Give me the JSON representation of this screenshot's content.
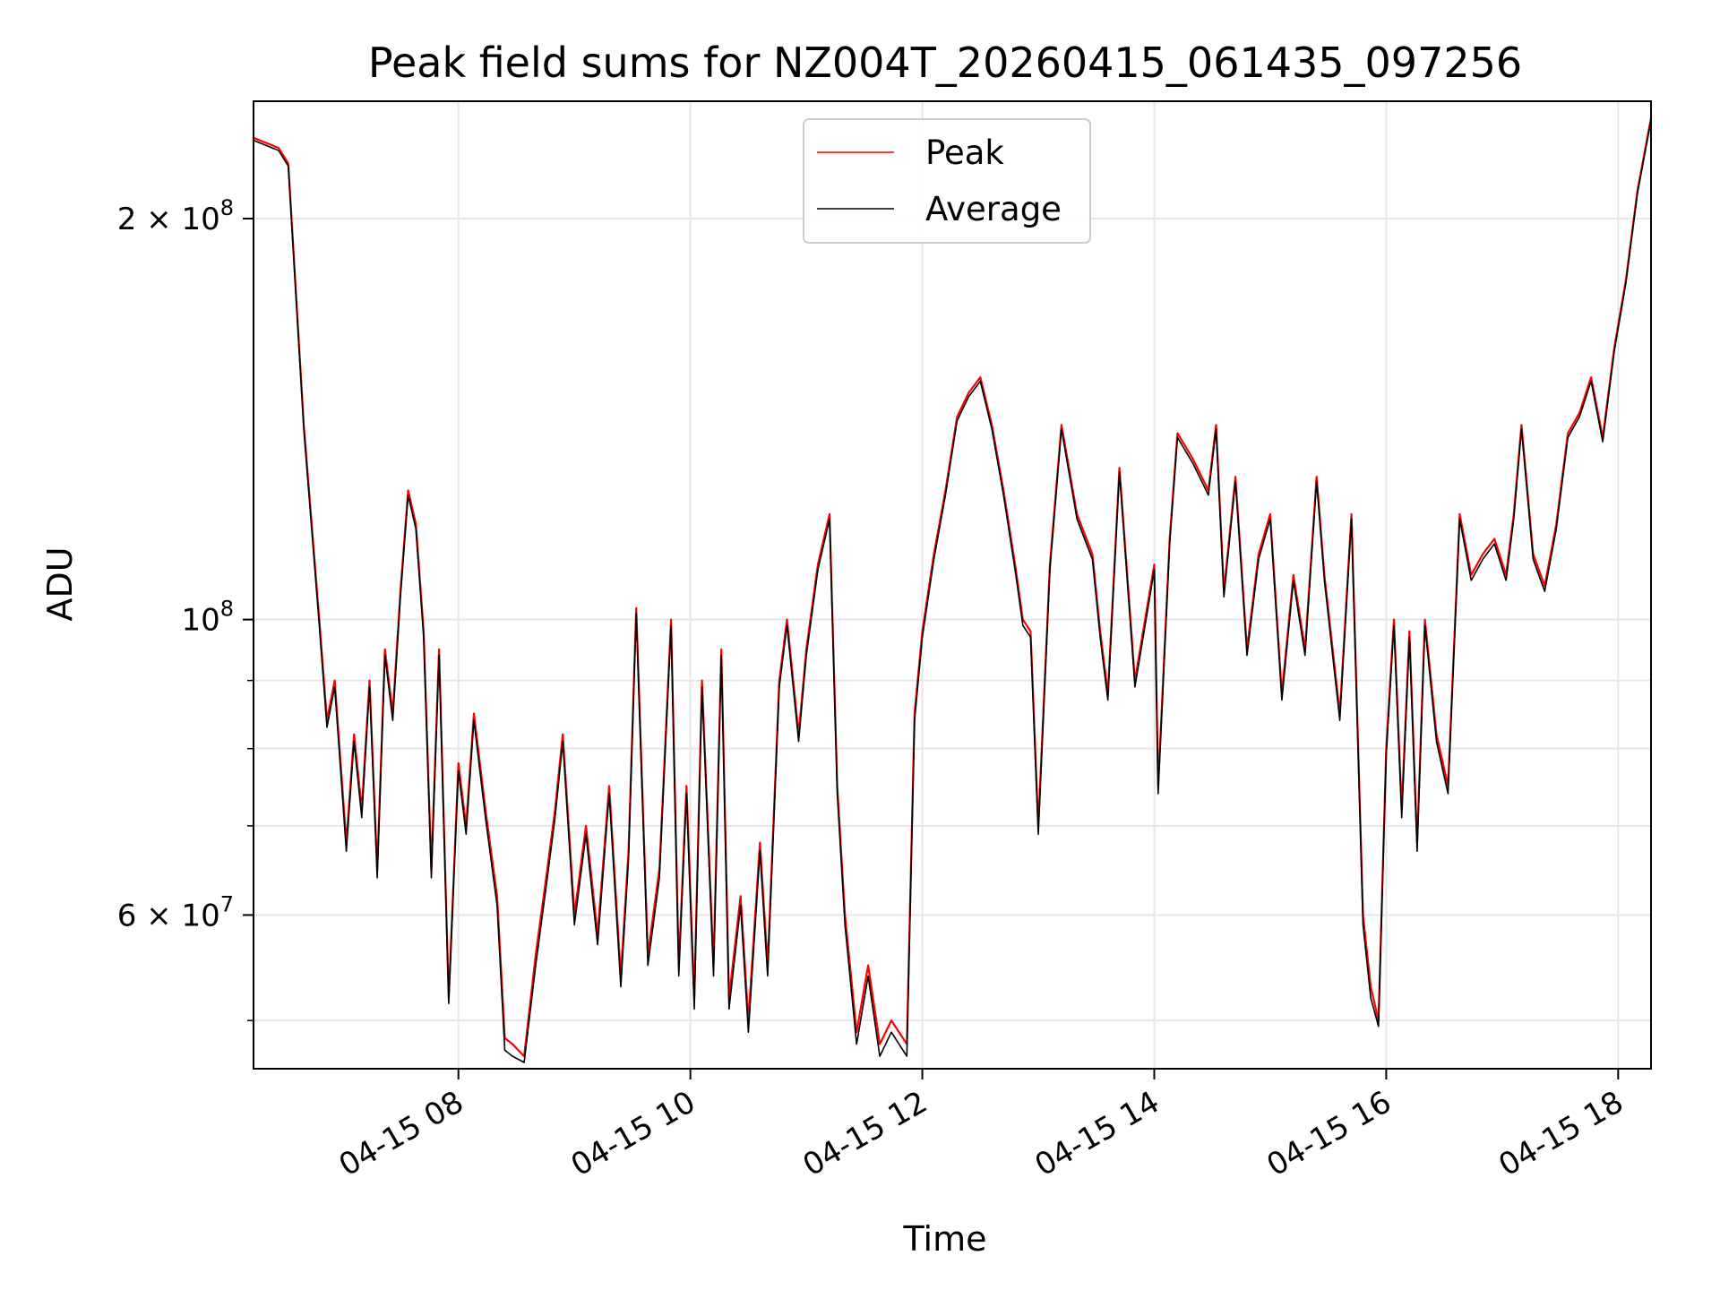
{
  "chart_data": {
    "type": "line",
    "title": "Peak field sums for NZ004T_20260415_061435_097256",
    "xlabel": "Time",
    "ylabel": "ADU",
    "y_scale": "log",
    "grid": true,
    "legend_position": "top-center",
    "xlim": [
      "2026-04-15 06:14",
      "2026-04-15 18:17"
    ],
    "ylim": [
      46000000,
      245000000
    ],
    "x_ticks": [
      {
        "value": "2026-04-15 08:00",
        "label": "04-15 08"
      },
      {
        "value": "2026-04-15 10:00",
        "label": "04-15 10"
      },
      {
        "value": "2026-04-15 12:00",
        "label": "04-15 12"
      },
      {
        "value": "2026-04-15 14:00",
        "label": "04-15 14"
      },
      {
        "value": "2026-04-15 16:00",
        "label": "04-15 16"
      },
      {
        "value": "2026-04-15 18:00",
        "label": "04-15 18"
      }
    ],
    "y_ticks_major": [
      {
        "value": 200000000,
        "label": "2 × 10⁸",
        "mantissa": "2 × 10",
        "exponent": "8"
      },
      {
        "value": 100000000,
        "label": "10⁸",
        "mantissa": "10",
        "exponent": "8"
      },
      {
        "value": 60000000,
        "label": "6 × 10⁷",
        "mantissa": "6 × 10",
        "exponent": "7"
      }
    ],
    "y_ticks_minor": [
      50000000,
      70000000,
      80000000,
      90000000
    ],
    "series": [
      {
        "name": "Peak",
        "color": "#ff0000",
        "x": [
          "2026-04-15 06:14",
          "2026-04-15 06:27",
          "2026-04-15 06:32",
          "2026-04-15 06:40",
          "2026-04-15 06:48",
          "2026-04-15 06:52",
          "2026-04-15 06:56",
          "2026-04-15 07:02",
          "2026-04-15 07:06",
          "2026-04-15 07:10",
          "2026-04-15 07:14",
          "2026-04-15 07:18",
          "2026-04-15 07:22",
          "2026-04-15 07:26",
          "2026-04-15 07:30",
          "2026-04-15 07:34",
          "2026-04-15 07:38",
          "2026-04-15 07:42",
          "2026-04-15 07:46",
          "2026-04-15 07:50",
          "2026-04-15 07:55",
          "2026-04-15 08:00",
          "2026-04-15 08:04",
          "2026-04-15 08:08",
          "2026-04-15 08:14",
          "2026-04-15 08:20",
          "2026-04-15 08:24",
          "2026-04-15 08:28",
          "2026-04-15 08:34",
          "2026-04-15 08:40",
          "2026-04-15 08:46",
          "2026-04-15 08:50",
          "2026-04-15 08:54",
          "2026-04-15 09:00",
          "2026-04-15 09:06",
          "2026-04-15 09:12",
          "2026-04-15 09:18",
          "2026-04-15 09:24",
          "2026-04-15 09:28",
          "2026-04-15 09:32",
          "2026-04-15 09:38",
          "2026-04-15 09:44",
          "2026-04-15 09:50",
          "2026-04-15 09:54",
          "2026-04-15 09:58",
          "2026-04-15 10:02",
          "2026-04-15 10:06",
          "2026-04-15 10:12",
          "2026-04-15 10:16",
          "2026-04-15 10:20",
          "2026-04-15 10:26",
          "2026-04-15 10:30",
          "2026-04-15 10:36",
          "2026-04-15 10:40",
          "2026-04-15 10:46",
          "2026-04-15 10:50",
          "2026-04-15 10:56",
          "2026-04-15 11:00",
          "2026-04-15 11:06",
          "2026-04-15 11:12",
          "2026-04-15 11:16",
          "2026-04-15 11:20",
          "2026-04-15 11:26",
          "2026-04-15 11:32",
          "2026-04-15 11:38",
          "2026-04-15 11:44",
          "2026-04-15 11:52",
          "2026-04-15 11:56",
          "2026-04-15 12:00",
          "2026-04-15 12:06",
          "2026-04-15 12:12",
          "2026-04-15 12:18",
          "2026-04-15 12:24",
          "2026-04-15 12:30",
          "2026-04-15 12:36",
          "2026-04-15 12:42",
          "2026-04-15 12:48",
          "2026-04-15 12:52",
          "2026-04-15 12:56",
          "2026-04-15 13:00",
          "2026-04-15 13:06",
          "2026-04-15 13:12",
          "2026-04-15 13:20",
          "2026-04-15 13:28",
          "2026-04-15 13:32",
          "2026-04-15 13:36",
          "2026-04-15 13:42",
          "2026-04-15 13:50",
          "2026-04-15 14:00",
          "2026-04-15 14:02",
          "2026-04-15 14:08",
          "2026-04-15 14:12",
          "2026-04-15 14:20",
          "2026-04-15 14:28",
          "2026-04-15 14:32",
          "2026-04-15 14:36",
          "2026-04-15 14:42",
          "2026-04-15 14:48",
          "2026-04-15 14:54",
          "2026-04-15 15:00",
          "2026-04-15 15:06",
          "2026-04-15 15:12",
          "2026-04-15 15:18",
          "2026-04-15 15:24",
          "2026-04-15 15:28",
          "2026-04-15 15:36",
          "2026-04-15 15:42",
          "2026-04-15 15:48",
          "2026-04-15 15:52",
          "2026-04-15 15:56",
          "2026-04-15 16:00",
          "2026-04-15 16:04",
          "2026-04-15 16:08",
          "2026-04-15 16:12",
          "2026-04-15 16:16",
          "2026-04-15 16:20",
          "2026-04-15 16:26",
          "2026-04-15 16:32",
          "2026-04-15 16:38",
          "2026-04-15 16:44",
          "2026-04-15 16:50",
          "2026-04-15 16:56",
          "2026-04-15 17:02",
          "2026-04-15 17:06",
          "2026-04-15 17:10",
          "2026-04-15 17:16",
          "2026-04-15 17:22",
          "2026-04-15 17:28",
          "2026-04-15 17:34",
          "2026-04-15 17:40",
          "2026-04-15 17:46",
          "2026-04-15 17:52",
          "2026-04-15 17:58",
          "2026-04-15 18:04",
          "2026-04-15 18:10",
          "2026-04-15 18:17"
        ],
        "values": [
          230000000,
          226000000,
          220000000,
          140000000,
          100000000,
          84000000,
          90000000,
          68000000,
          82000000,
          72000000,
          90000000,
          65000000,
          95000000,
          85000000,
          105000000,
          125000000,
          118000000,
          98000000,
          65000000,
          95000000,
          52000000,
          78000000,
          70000000,
          85000000,
          72000000,
          62000000,
          48500000,
          48000000,
          47000000,
          56000000,
          65000000,
          72000000,
          82000000,
          60000000,
          70000000,
          58000000,
          75000000,
          54000000,
          67000000,
          102000000,
          56000000,
          65000000,
          100000000,
          55000000,
          75000000,
          52000000,
          90000000,
          55000000,
          95000000,
          52000000,
          62000000,
          50000000,
          68000000,
          55000000,
          90000000,
          100000000,
          82000000,
          95000000,
          110000000,
          120000000,
          75000000,
          60000000,
          49000000,
          55000000,
          48000000,
          50000000,
          48000000,
          85000000,
          98000000,
          112000000,
          125000000,
          142000000,
          148000000,
          152000000,
          140000000,
          125000000,
          110000000,
          100000000,
          98000000,
          70000000,
          110000000,
          140000000,
          120000000,
          112000000,
          98000000,
          88000000,
          130000000,
          90000000,
          110000000,
          75000000,
          115000000,
          138000000,
          132000000,
          125000000,
          140000000,
          105000000,
          128000000,
          95000000,
          112000000,
          120000000,
          88000000,
          108000000,
          95000000,
          128000000,
          108000000,
          85000000,
          120000000,
          60000000,
          53000000,
          50000000,
          80000000,
          100000000,
          72000000,
          98000000,
          68000000,
          100000000,
          82000000,
          75000000,
          120000000,
          108000000,
          112000000,
          115000000,
          108000000,
          120000000,
          140000000,
          112000000,
          106000000,
          118000000,
          138000000,
          143000000,
          152000000,
          137000000,
          160000000,
          180000000,
          210000000,
          238000000
        ],
        "note_ignore": ""
      },
      {
        "name": "Average",
        "color": "#000000",
        "x": [
          "2026-04-15 06:14",
          "2026-04-15 06:27",
          "2026-04-15 06:32",
          "2026-04-15 06:40",
          "2026-04-15 06:48",
          "2026-04-15 06:52",
          "2026-04-15 06:56",
          "2026-04-15 07:02",
          "2026-04-15 07:06",
          "2026-04-15 07:10",
          "2026-04-15 07:14",
          "2026-04-15 07:18",
          "2026-04-15 07:22",
          "2026-04-15 07:26",
          "2026-04-15 07:30",
          "2026-04-15 07:34",
          "2026-04-15 07:38",
          "2026-04-15 07:42",
          "2026-04-15 07:46",
          "2026-04-15 07:50",
          "2026-04-15 07:55",
          "2026-04-15 08:00",
          "2026-04-15 08:04",
          "2026-04-15 08:08",
          "2026-04-15 08:14",
          "2026-04-15 08:20",
          "2026-04-15 08:24",
          "2026-04-15 08:28",
          "2026-04-15 08:34",
          "2026-04-15 08:40",
          "2026-04-15 08:46",
          "2026-04-15 08:50",
          "2026-04-15 08:54",
          "2026-04-15 09:00",
          "2026-04-15 09:06",
          "2026-04-15 09:12",
          "2026-04-15 09:18",
          "2026-04-15 09:24",
          "2026-04-15 09:28",
          "2026-04-15 09:32",
          "2026-04-15 09:38",
          "2026-04-15 09:44",
          "2026-04-15 09:50",
          "2026-04-15 09:54",
          "2026-04-15 09:58",
          "2026-04-15 10:02",
          "2026-04-15 10:06",
          "2026-04-15 10:12",
          "2026-04-15 10:16",
          "2026-04-15 10:20",
          "2026-04-15 10:26",
          "2026-04-15 10:30",
          "2026-04-15 10:36",
          "2026-04-15 10:40",
          "2026-04-15 10:46",
          "2026-04-15 10:50",
          "2026-04-15 10:56",
          "2026-04-15 11:00",
          "2026-04-15 11:06",
          "2026-04-15 11:12",
          "2026-04-15 11:16",
          "2026-04-15 11:20",
          "2026-04-15 11:26",
          "2026-04-15 11:32",
          "2026-04-15 11:38",
          "2026-04-15 11:44",
          "2026-04-15 11:52",
          "2026-04-15 11:56",
          "2026-04-15 12:00",
          "2026-04-15 12:06",
          "2026-04-15 12:12",
          "2026-04-15 12:18",
          "2026-04-15 12:24",
          "2026-04-15 12:30",
          "2026-04-15 12:36",
          "2026-04-15 12:42",
          "2026-04-15 12:48",
          "2026-04-15 12:52",
          "2026-04-15 12:56",
          "2026-04-15 13:00",
          "2026-04-15 13:06",
          "2026-04-15 13:12",
          "2026-04-15 13:20",
          "2026-04-15 13:28",
          "2026-04-15 13:32",
          "2026-04-15 13:36",
          "2026-04-15 13:42",
          "2026-04-15 13:50",
          "2026-04-15 14:00",
          "2026-04-15 14:02",
          "2026-04-15 14:08",
          "2026-04-15 14:12",
          "2026-04-15 14:20",
          "2026-04-15 14:28",
          "2026-04-15 14:32",
          "2026-04-15 14:36",
          "2026-04-15 14:42",
          "2026-04-15 14:48",
          "2026-04-15 14:54",
          "2026-04-15 15:00",
          "2026-04-15 15:06",
          "2026-04-15 15:12",
          "2026-04-15 15:18",
          "2026-04-15 15:24",
          "2026-04-15 15:28",
          "2026-04-15 15:36",
          "2026-04-15 15:42",
          "2026-04-15 15:48",
          "2026-04-15 15:52",
          "2026-04-15 15:56",
          "2026-04-15 16:00",
          "2026-04-15 16:04",
          "2026-04-15 16:08",
          "2026-04-15 16:12",
          "2026-04-15 16:16",
          "2026-04-15 16:20",
          "2026-04-15 16:26",
          "2026-04-15 16:32",
          "2026-04-15 16:38",
          "2026-04-15 16:44",
          "2026-04-15 16:50",
          "2026-04-15 16:56",
          "2026-04-15 17:02",
          "2026-04-15 17:06",
          "2026-04-15 17:10",
          "2026-04-15 17:16",
          "2026-04-15 17:22",
          "2026-04-15 17:28",
          "2026-04-15 17:34",
          "2026-04-15 17:40",
          "2026-04-15 17:46",
          "2026-04-15 17:52",
          "2026-04-15 17:58",
          "2026-04-15 18:04",
          "2026-04-15 18:10",
          "2026-04-15 18:17"
        ],
        "values": [
          229000000,
          225000000,
          219000000,
          139000000,
          99000000,
          83000000,
          89000000,
          67000000,
          81000000,
          71000000,
          89000000,
          64000000,
          94000000,
          84000000,
          104000000,
          124000000,
          117000000,
          97000000,
          64000000,
          94000000,
          51500000,
          77000000,
          69000000,
          84000000,
          71000000,
          61000000,
          47500000,
          47000000,
          46500000,
          55000000,
          64000000,
          71000000,
          81000000,
          59000000,
          69000000,
          57000000,
          74000000,
          53000000,
          66000000,
          101000000,
          55000000,
          64000000,
          99000000,
          54000000,
          74000000,
          51000000,
          89000000,
          54000000,
          94000000,
          51000000,
          61000000,
          49000000,
          67000000,
          54000000,
          89000000,
          99000000,
          81000000,
          94000000,
          109000000,
          119000000,
          74000000,
          59000000,
          48000000,
          54000000,
          47000000,
          49000000,
          47000000,
          84000000,
          97000000,
          111000000,
          124000000,
          141000000,
          147000000,
          151000000,
          139000000,
          124000000,
          109000000,
          99000000,
          97000000,
          69000000,
          109000000,
          139000000,
          119000000,
          111000000,
          97000000,
          87000000,
          129000000,
          89000000,
          109000000,
          74000000,
          114000000,
          137000000,
          131000000,
          124000000,
          139000000,
          104000000,
          127000000,
          94000000,
          111000000,
          119000000,
          87000000,
          107000000,
          94000000,
          127000000,
          107000000,
          84000000,
          119000000,
          59000000,
          52000000,
          49500000,
          79000000,
          99000000,
          71000000,
          97000000,
          67000000,
          99000000,
          81000000,
          74000000,
          119000000,
          107000000,
          111000000,
          114000000,
          107000000,
          119000000,
          139000000,
          111000000,
          105000000,
          117000000,
          137000000,
          142000000,
          151000000,
          136000000,
          159000000,
          179000000,
          209000000,
          237000000
        ]
      }
    ]
  }
}
